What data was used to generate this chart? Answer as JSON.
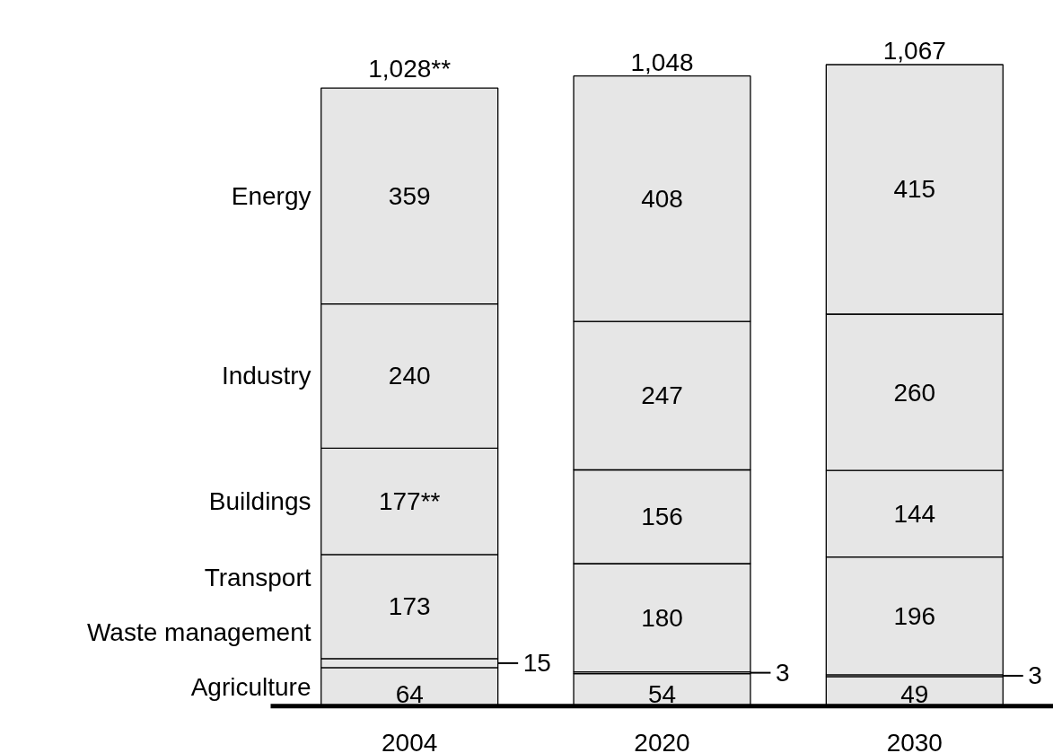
{
  "chart_data": {
    "type": "bar",
    "stacked": true,
    "categories": [
      "2004",
      "2020",
      "2030"
    ],
    "series": [
      {
        "name": "Agriculture",
        "color": "#e6e6e6",
        "values": [
          64,
          54,
          49
        ],
        "value_labels": [
          "64",
          "54",
          "49"
        ]
      },
      {
        "name": "Waste management",
        "color": "#e6e6e6",
        "values": [
          15,
          3,
          3
        ],
        "value_labels": [
          "15",
          "3",
          "3"
        ]
      },
      {
        "name": "Transport",
        "color": "#e6e6e6",
        "values": [
          173,
          180,
          196
        ],
        "value_labels": [
          "173",
          "180",
          "196"
        ]
      },
      {
        "name": "Buildings",
        "color": "#e6e6e6",
        "values": [
          177,
          156,
          144
        ],
        "value_labels": [
          "177**",
          "156",
          "144"
        ]
      },
      {
        "name": "Industry",
        "color": "#e6e6e6",
        "values": [
          240,
          247,
          260
        ],
        "value_labels": [
          "240",
          "247",
          "260"
        ]
      },
      {
        "name": "Energy",
        "color": "#e6e6e6",
        "values": [
          359,
          408,
          415
        ],
        "value_labels": [
          "359",
          "408",
          "415"
        ]
      }
    ],
    "totals": [
      "1,028**",
      "1,048",
      "1,067"
    ],
    "grid": false
  }
}
